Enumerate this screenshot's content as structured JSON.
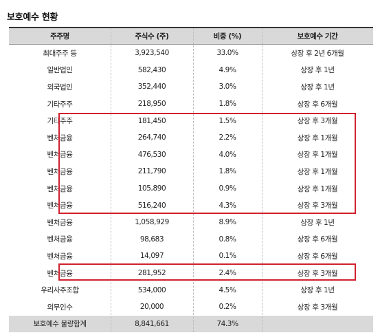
{
  "title": "보호예수 현황",
  "headers": [
    "주주명",
    "주식수 (주)",
    "비중 (%)",
    "보호예수 기간"
  ],
  "rows": [
    {
      "name": "최대주주 등",
      "shares": "3,923,540",
      "ratio": "33.0%",
      "period": "상장 후 2년 6개월"
    },
    {
      "name": "일반법인",
      "shares": "582,430",
      "ratio": "4.9%",
      "period": "상장 후 1년"
    },
    {
      "name": "외국법인",
      "shares": "352,440",
      "ratio": "3.0%",
      "period": "상장 후 1년"
    },
    {
      "name": "기타주주",
      "shares": "218,950",
      "ratio": "1.8%",
      "period": "상장 후 6개월"
    },
    {
      "name": "기타주주",
      "shares": "181,450",
      "ratio": "1.5%",
      "period": "상장 후 3개월"
    },
    {
      "name": "벤처금융",
      "shares": "264,740",
      "ratio": "2.2%",
      "period": "상장 후 1개월"
    },
    {
      "name": "벤처금융",
      "shares": "476,530",
      "ratio": "4.0%",
      "period": "상장 후 1개월"
    },
    {
      "name": "벤처금융",
      "shares": "211,790",
      "ratio": "1.8%",
      "period": "상장 후 1개월"
    },
    {
      "name": "벤처금융",
      "shares": "105,890",
      "ratio": "0.9%",
      "period": "상장 후 1개월"
    },
    {
      "name": "벤처금융",
      "shares": "516,240",
      "ratio": "4.3%",
      "period": "상장 후 3개월"
    },
    {
      "name": "벤처금융",
      "shares": "1,058,929",
      "ratio": "8.9%",
      "period": "상장 후 1년"
    },
    {
      "name": "벤처금융",
      "shares": "98,683",
      "ratio": "0.8%",
      "period": "상장 후 6개월"
    },
    {
      "name": "벤처금융",
      "shares": "14,097",
      "ratio": "0.1%",
      "period": "상장 후 6개월"
    },
    {
      "name": "벤처금융",
      "shares": "281,952",
      "ratio": "2.4%",
      "period": "상장 후 3개월"
    },
    {
      "name": "우리사주조합",
      "shares": "534,000",
      "ratio": "4.5%",
      "period": "상장 후 1년"
    },
    {
      "name": "의무인수",
      "shares": "20,000",
      "ratio": "0.2%",
      "period": "상장 후 3개월"
    }
  ],
  "total": {
    "name": "보호예수 물량합계",
    "shares": "8,841,661",
    "ratio": "74.3%",
    "period": ""
  },
  "highlight_color": "#d0202e"
}
